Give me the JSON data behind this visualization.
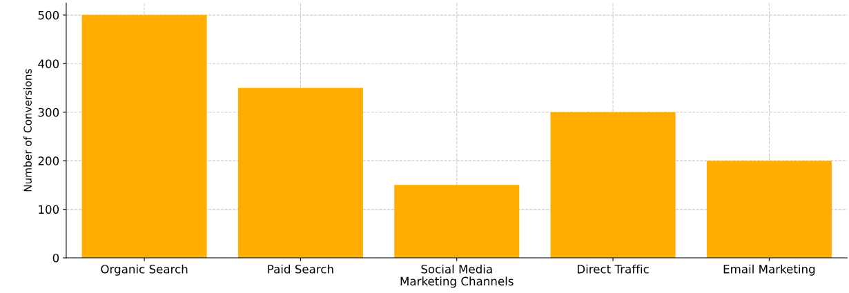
{
  "chart_data": {
    "type": "bar",
    "xlabel": "Marketing Channels",
    "ylabel": "Number of Conversions",
    "categories": [
      "Organic Search",
      "Paid Search",
      "Social Media",
      "Direct Traffic",
      "Email Marketing"
    ],
    "values": [
      500,
      350,
      150,
      300,
      200
    ],
    "color": "#ffad00",
    "ylim": [
      0,
      525
    ],
    "yticks": [
      0,
      100,
      200,
      300,
      400,
      500
    ],
    "grid": true
  }
}
